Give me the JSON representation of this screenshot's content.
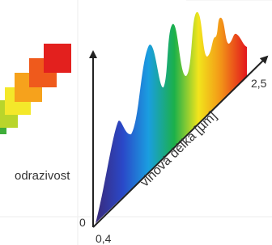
{
  "labels": {
    "y_axis": "odrazivost",
    "x_axis": "vlnová délka [µm]",
    "origin": "0",
    "x_start": "0,4",
    "x_end": "2,5"
  }
}
